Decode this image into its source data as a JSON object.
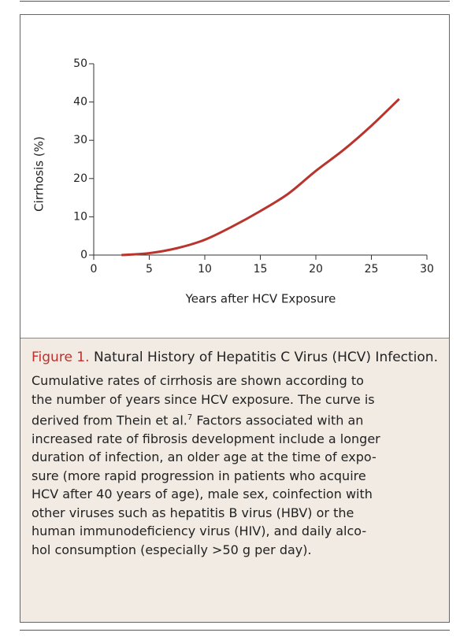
{
  "chart_data": {
    "type": "line",
    "xlabel": "Years after HCV Exposure",
    "ylabel": "Cirrhosis (%)",
    "x": [
      2.5,
      5,
      7.5,
      10,
      12.5,
      15,
      17.5,
      20,
      22.5,
      25,
      27.5
    ],
    "series": [
      {
        "color": "#b8342c",
        "values": [
          0,
          0.5,
          1.8,
          4,
          7.5,
          11.5,
          16,
          22,
          27.5,
          33.8,
          40.8
        ]
      }
    ],
    "xlim": [
      0,
      30
    ],
    "xticks": [
      0,
      5,
      10,
      15,
      20,
      25,
      30
    ],
    "ylim": [
      0,
      50
    ],
    "yticks": [
      0,
      10,
      20,
      30,
      40,
      50
    ]
  },
  "caption": {
    "label": "Figure 1.",
    "title": "Natural History of Hepatitis C Virus (HCV) Infection.",
    "lines": [
      "Cumulative rates of cirrhosis are shown according to",
      "the number of years since HCV exposure. The curve is",
      {
        "text": "derived from Thein et al.",
        "sup": "7",
        "rest": "Factors associated with an"
      },
      "increased rate of fibrosis development include a longer",
      "duration of infection, an older age at the time of expo-",
      "sure (more rapid progression in patients who acquire",
      "HCV after 40 years of age), male sex, coinfection with",
      "other viruses such as hepatitis B virus (HBV) or the",
      "human immunodeficiency virus (HIV), and daily alco-",
      "hol consumption (especially >50 g per day)."
    ]
  }
}
